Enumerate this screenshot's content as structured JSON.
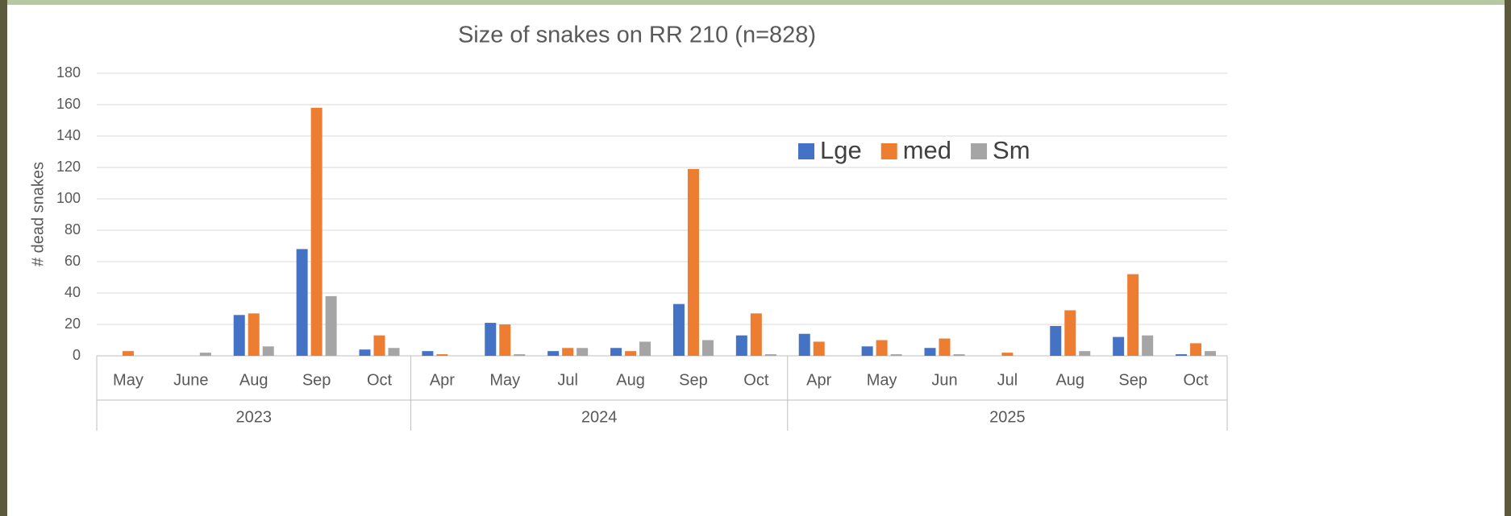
{
  "chart_data": {
    "type": "bar",
    "title": "Size of snakes on RR 210 (n=828)",
    "y_label": "# dead snakes",
    "groups": [
      {
        "label": "2023",
        "categories": [
          "May",
          "June",
          "Aug",
          "Sep",
          "Oct"
        ]
      },
      {
        "label": "2024",
        "categories": [
          "Apr",
          "May",
          "Jul",
          "Aug",
          "Sep",
          "Oct"
        ]
      },
      {
        "label": "2025",
        "categories": [
          "Apr",
          "May",
          "Jun",
          "Jul",
          "Aug",
          "Sep",
          "Oct"
        ]
      }
    ],
    "series": [
      {
        "name": "Lge",
        "color": "#4472c4",
        "values": [
          0,
          0,
          26,
          68,
          4,
          3,
          21,
          3,
          5,
          33,
          13,
          14,
          6,
          5,
          0,
          19,
          12,
          1
        ]
      },
      {
        "name": "med",
        "color": "#ed7d31",
        "values": [
          3,
          0,
          27,
          158,
          13,
          1,
          20,
          5,
          3,
          119,
          27,
          9,
          10,
          11,
          2,
          29,
          52,
          8
        ]
      },
      {
        "name": "Sm",
        "color": "#a5a5a5",
        "values": [
          0,
          2,
          6,
          38,
          5,
          0,
          1,
          5,
          9,
          10,
          1,
          0,
          1,
          1,
          0,
          3,
          13,
          3
        ]
      }
    ],
    "ylim": [
      0,
      180
    ],
    "yticks": [
      0,
      20,
      40,
      60,
      80,
      100,
      120,
      140,
      160,
      180
    ],
    "grid": true,
    "legend": "top-right"
  }
}
